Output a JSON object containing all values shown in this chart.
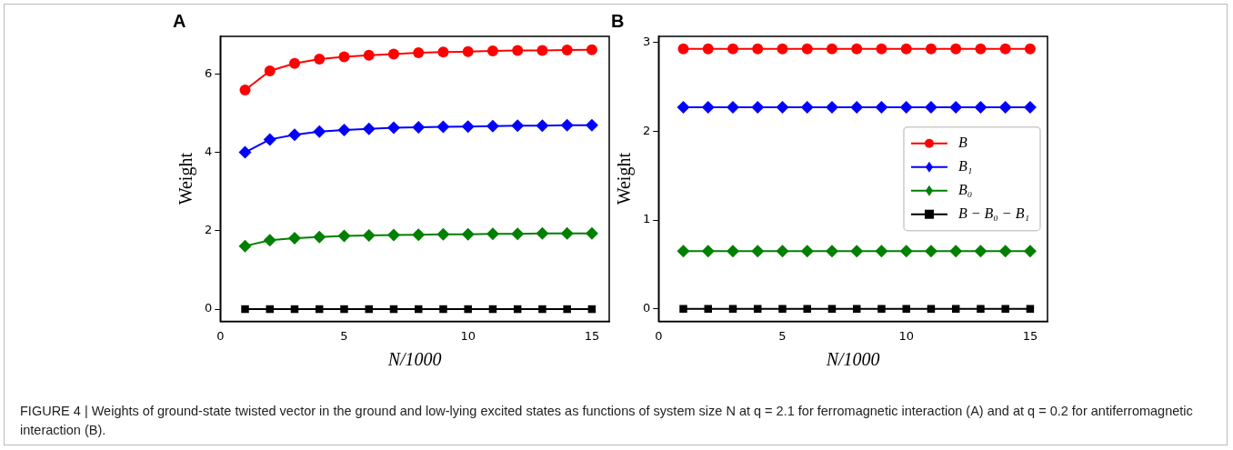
{
  "chart_data": [
    {
      "type": "line",
      "title": "A",
      "xlabel": "N/1000",
      "ylabel": "Weight",
      "xlim": [
        0,
        15.7
      ],
      "xticks": [
        0,
        5,
        10,
        15
      ],
      "ylim": [
        -0.31,
        6.96
      ],
      "yticks": [
        0,
        2,
        4,
        6
      ],
      "grid": false,
      "legend": false,
      "line_style": "solid",
      "x": [
        1,
        2,
        3,
        4,
        5,
        6,
        7,
        8,
        9,
        10,
        11,
        12,
        13,
        14,
        15
      ],
      "series": [
        {
          "color": "#ff0000",
          "marker": "circle",
          "values": [
            5.59,
            6.08,
            6.27,
            6.38,
            6.44,
            6.48,
            6.51,
            6.54,
            6.56,
            6.57,
            6.59,
            6.6,
            6.6,
            6.61,
            6.62
          ]
        },
        {
          "color": "#0000ff",
          "marker": "diamond",
          "values": [
            4.0,
            4.33,
            4.45,
            4.53,
            4.57,
            4.6,
            4.63,
            4.64,
            4.65,
            4.66,
            4.67,
            4.68,
            4.68,
            4.69,
            4.69
          ]
        },
        {
          "color": "#008000",
          "marker": "diamond",
          "values": [
            1.61,
            1.76,
            1.81,
            1.84,
            1.87,
            1.88,
            1.89,
            1.9,
            1.91,
            1.91,
            1.92,
            1.92,
            1.93,
            1.93,
            1.93
          ]
        },
        {
          "color": "#000000",
          "marker": "square",
          "values": [
            0,
            0,
            0,
            0,
            0,
            0,
            0,
            0,
            0,
            0,
            0,
            0,
            0,
            0,
            0
          ]
        }
      ],
      "annotations": [
        "FIGURE 4 | Weights of ground-state twisted vector in the ground and low-lying excited states as functions of system size N at q = 2.1 for ferromagnetic interaction (A) and at q = 0.2 for antiferromagnetic interaction (B)."
      ]
    },
    {
      "type": "line",
      "title": "B",
      "xlabel": "N/1000",
      "ylabel": "Weight",
      "xlim": [
        0,
        15.7
      ],
      "xticks": [
        0,
        5,
        10,
        15
      ],
      "ylim": [
        -0.14,
        3.07
      ],
      "yticks": [
        0,
        1,
        2,
        3
      ],
      "grid": false,
      "legend": "center right",
      "line_style": "solid",
      "x": [
        1,
        2,
        3,
        4,
        5,
        6,
        7,
        8,
        9,
        10,
        11,
        12,
        13,
        14,
        15
      ],
      "series": [
        {
          "name": "B",
          "color": "#ff0000",
          "marker": "circle",
          "values": [
            2.93,
            2.93,
            2.93,
            2.93,
            2.93,
            2.93,
            2.93,
            2.93,
            2.93,
            2.93,
            2.93,
            2.93,
            2.93,
            2.93,
            2.93
          ]
        },
        {
          "name": "B₁",
          "color": "#0000ff",
          "marker": "diamond",
          "values": [
            2.27,
            2.27,
            2.27,
            2.27,
            2.27,
            2.27,
            2.27,
            2.27,
            2.27,
            2.27,
            2.27,
            2.27,
            2.27,
            2.27,
            2.27
          ]
        },
        {
          "name": "B₀",
          "color": "#008000",
          "marker": "diamond",
          "values": [
            0.65,
            0.65,
            0.65,
            0.65,
            0.65,
            0.65,
            0.65,
            0.65,
            0.65,
            0.65,
            0.65,
            0.65,
            0.65,
            0.65,
            0.65
          ]
        },
        {
          "name": "B − B₀ − B₁",
          "color": "#000000",
          "marker": "square",
          "values": [
            0,
            0,
            0,
            0,
            0,
            0,
            0,
            0,
            0,
            0,
            0,
            0,
            0,
            0,
            0
          ]
        }
      ]
    }
  ]
}
